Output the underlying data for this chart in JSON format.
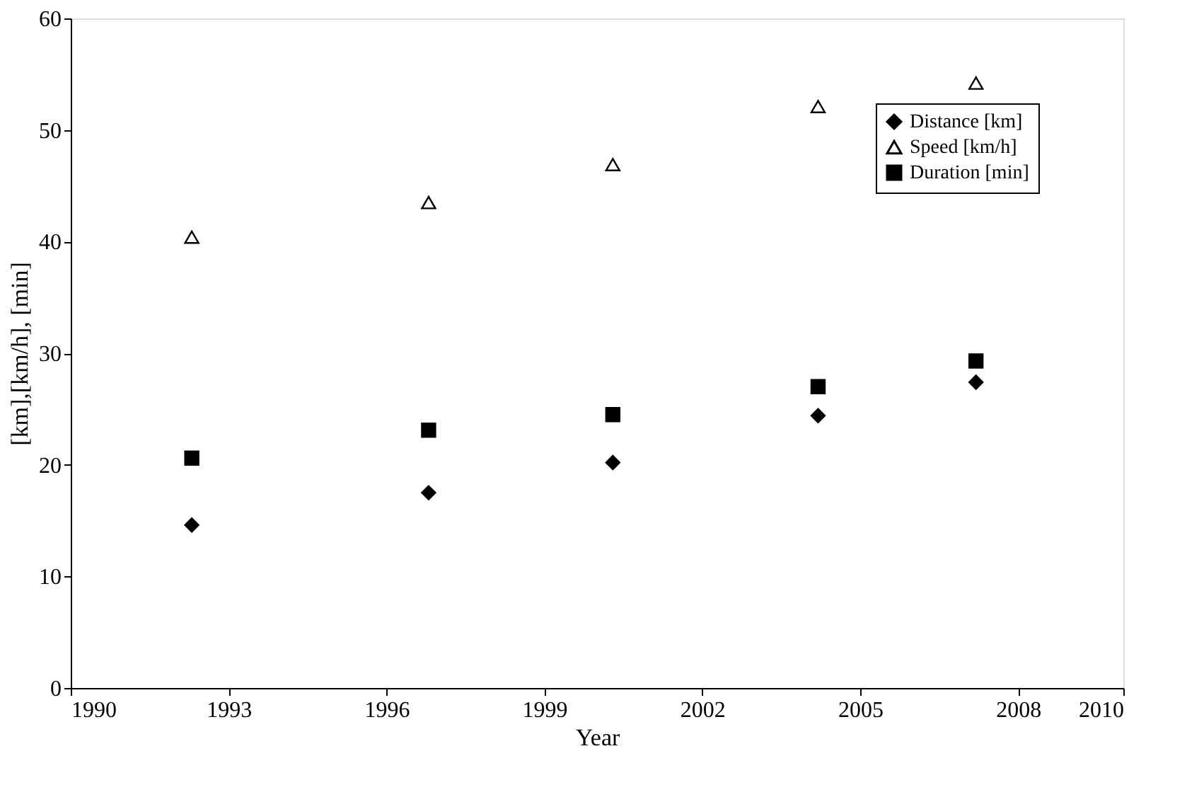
{
  "chart_data": {
    "type": "scatter",
    "xlabel": "Year",
    "ylabel": "[km],[km/h], [min]",
    "xlim": [
      1990,
      2010
    ],
    "ylim": [
      0,
      60
    ],
    "xticks": [
      1990,
      1993,
      1996,
      1999,
      2002,
      2005,
      2008,
      2010
    ],
    "yticks": [
      0,
      10,
      20,
      30,
      40,
      50,
      60
    ],
    "grid": false,
    "legend": "top right",
    "x": [
      1992.3,
      1996.8,
      2000.3,
      2004.2,
      2007.2
    ],
    "series": [
      {
        "name": "Distance [km]",
        "color": "#000000",
        "marker": "diamond",
        "values": [
          14.6,
          17.5,
          20.2,
          24.4,
          27.4
        ]
      },
      {
        "name": "Speed [km/h]",
        "color": "#000000",
        "marker": "triangle",
        "values": [
          40.4,
          43.5,
          46.9,
          52.1,
          54.2
        ]
      },
      {
        "name": "Duration [min]",
        "color": "#000000",
        "marker": "square",
        "values": [
          20.6,
          23.1,
          24.5,
          27.0,
          29.3
        ]
      }
    ]
  }
}
